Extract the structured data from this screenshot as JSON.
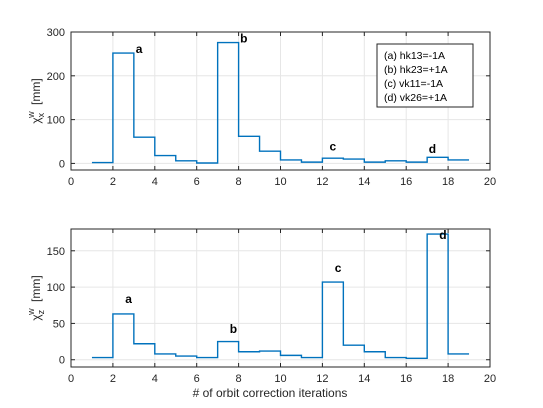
{
  "figure": {
    "xlabel": "# of orbit correction iterations",
    "line_color": "#0072BD"
  },
  "chart_data": [
    {
      "type": "line",
      "style": "step",
      "ylabel_main": "χ",
      "ylabel_sup": "w",
      "ylabel_sub": "x",
      "ylabel_unit": "[mm]",
      "xlim": [
        0,
        20
      ],
      "ylim": [
        -15,
        300
      ],
      "xticks": [
        0,
        2,
        4,
        6,
        8,
        10,
        12,
        14,
        16,
        18,
        20
      ],
      "yticks": [
        0,
        100,
        200,
        300
      ],
      "grid": true,
      "x": [
        1,
        2,
        3,
        4,
        5,
        6,
        7,
        8,
        9,
        10,
        11,
        12,
        13,
        14,
        15,
        16,
        17,
        18,
        19
      ],
      "values": [
        2,
        252,
        60,
        18,
        6,
        1,
        276,
        62,
        28,
        8,
        3,
        12,
        10,
        3,
        6,
        3,
        14,
        8,
        8
      ],
      "annotations": [
        {
          "text": "a",
          "x": 3.25,
          "y": 252
        },
        {
          "text": "b",
          "x": 8.25,
          "y": 276
        },
        {
          "text": "c",
          "x": 12.5,
          "y": 30
        },
        {
          "text": "d",
          "x": 17.25,
          "y": 24
        }
      ],
      "legend": {
        "placement": "top-right",
        "entries": [
          "(a) hk13=-1A",
          "(b) hk23=+1A",
          "(c) vk11=-1A",
          "(d) vk26=+1A"
        ]
      }
    },
    {
      "type": "line",
      "style": "step",
      "ylabel_main": "χ",
      "ylabel_sup": "w",
      "ylabel_sub": "z",
      "ylabel_unit": "[mm]",
      "xlim": [
        0,
        20
      ],
      "ylim": [
        -10,
        180
      ],
      "xticks": [
        0,
        2,
        4,
        6,
        8,
        10,
        12,
        14,
        16,
        18,
        20
      ],
      "yticks": [
        0,
        50,
        100,
        150
      ],
      "grid": true,
      "x": [
        1,
        2,
        3,
        4,
        5,
        6,
        7,
        8,
        9,
        10,
        11,
        12,
        13,
        14,
        15,
        16,
        17,
        18,
        19
      ],
      "values": [
        3,
        63,
        22,
        8,
        5,
        3,
        25,
        11,
        12,
        6,
        3,
        107,
        20,
        11,
        3,
        2,
        173,
        8,
        8
      ],
      "annotations": [
        {
          "text": "a",
          "x": 2.75,
          "y": 78
        },
        {
          "text": "b",
          "x": 7.75,
          "y": 37
        },
        {
          "text": "c",
          "x": 12.75,
          "y": 121
        },
        {
          "text": "d",
          "x": 17.75,
          "y": 166
        }
      ]
    }
  ]
}
